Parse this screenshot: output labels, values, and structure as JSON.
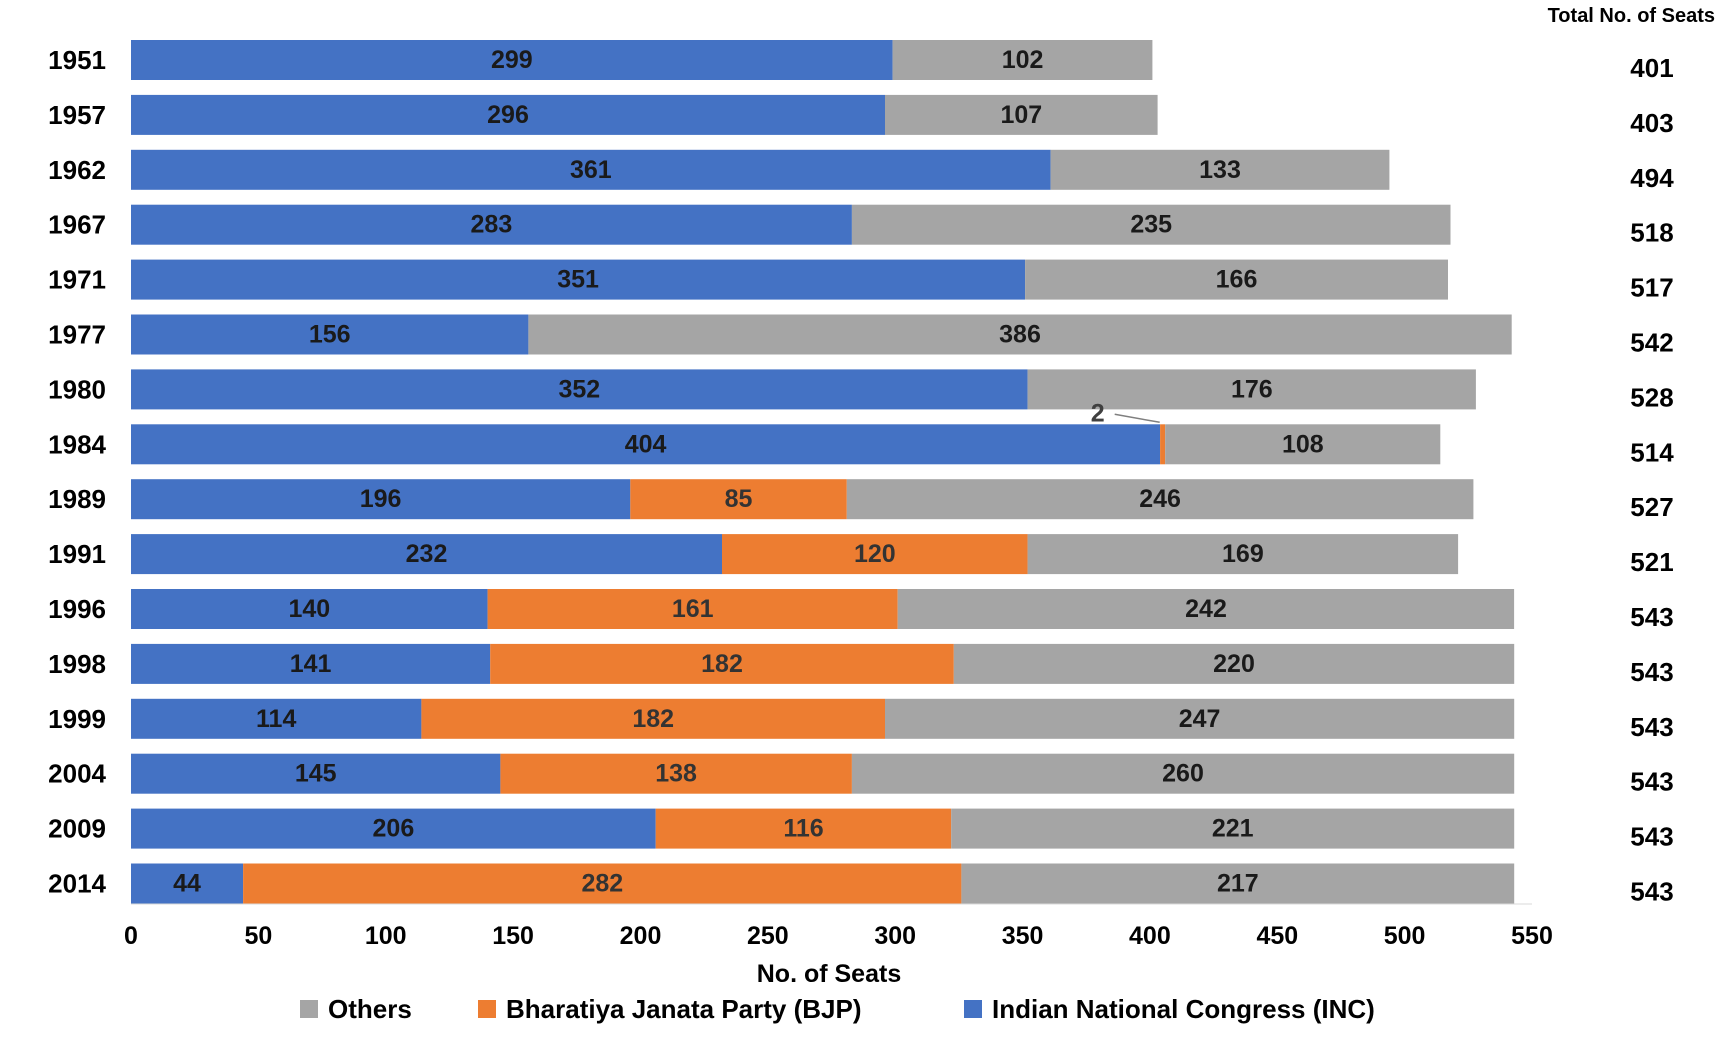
{
  "chart_data": {
    "type": "bar",
    "orientation": "horizontal",
    "stacked": true,
    "categories": [
      "1951",
      "1957",
      "1962",
      "1967",
      "1971",
      "1977",
      "1980",
      "1984",
      "1989",
      "1991",
      "1996",
      "1998",
      "1999",
      "2004",
      "2009",
      "2014"
    ],
    "series": [
      {
        "name": "Indian National Congress (INC)",
        "color": "#4472C4",
        "values": [
          299,
          296,
          361,
          283,
          351,
          156,
          352,
          404,
          196,
          232,
          140,
          141,
          114,
          145,
          206,
          44
        ]
      },
      {
        "name": "Bharatiya Janata Party (BJP)",
        "color": "#ED7D31",
        "values": [
          0,
          0,
          0,
          0,
          0,
          0,
          0,
          2,
          85,
          120,
          161,
          182,
          182,
          138,
          116,
          282
        ]
      },
      {
        "name": "Others",
        "color": "#A5A5A5",
        "values": [
          102,
          107,
          133,
          235,
          166,
          386,
          176,
          108,
          246,
          169,
          242,
          220,
          247,
          260,
          221,
          217
        ]
      }
    ],
    "totals_header": "Total No. of Seats",
    "totals": [
      401,
      403,
      494,
      518,
      517,
      542,
      528,
      514,
      527,
      521,
      543,
      543,
      543,
      543,
      543,
      543
    ],
    "xlabel": "No. of Seats",
    "ylabel": "",
    "xlim": [
      0,
      550
    ],
    "xticks": [
      0,
      50,
      100,
      150,
      200,
      250,
      300,
      350,
      400,
      450,
      500,
      550
    ],
    "legend_order": [
      "Others",
      "Bharatiya Janata Party (BJP)",
      "Indian National Congress (INC)"
    ],
    "legend_position": "bottom",
    "grid": false,
    "callout_label": "2",
    "callout_for": {
      "category": "1984",
      "series": "Bharatiya Janata Party (BJP)"
    }
  }
}
